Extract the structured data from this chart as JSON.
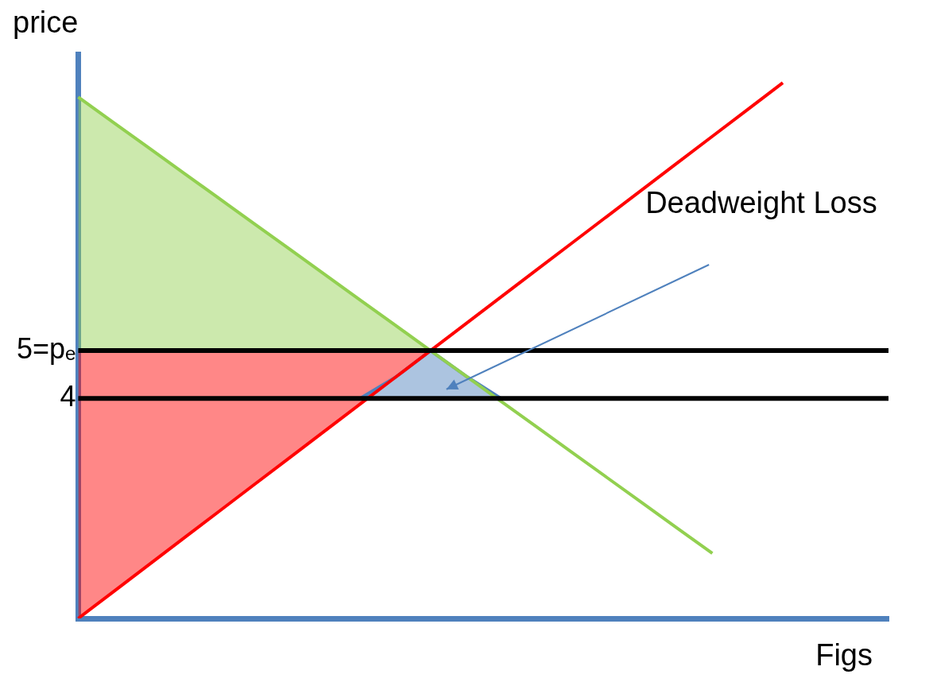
{
  "chart_data": {
    "type": "line",
    "xlabel": "Figs",
    "ylabel": "price",
    "categories": [
      null,
      null,
      null,
      null,
      null,
      null,
      null,
      null,
      null,
      null,
      null,
      null,
      null,
      null,
      null,
      null,
      null,
      null,
      null,
      null,
      null,
      null,
      null,
      null
    ],
    "ylim": [
      -0.6,
      11.2
    ],
    "yticks": [
      4,
      {
        "value": 5,
        "label": "5=pₑ"
      }
    ],
    "tick_labels": "y",
    "grid": false,
    "legend": false,
    "marker": "none",
    "series": [
      {
        "color": "#92d050",
        "values": [
          10.3,
          9.77,
          9.24,
          8.71,
          8.18,
          7.65,
          7.12,
          6.59,
          6.06,
          5.53,
          5,
          4.47,
          3.94,
          3.41,
          2.88,
          2.35,
          1.82,
          1.29,
          0.76,
          null,
          null,
          null,
          null,
          null
        ],
        "lower": [
          5,
          5,
          5,
          5,
          5,
          5,
          5,
          5,
          5,
          5,
          5,
          null,
          null,
          null,
          null,
          null,
          null,
          null,
          null,
          null,
          null,
          null,
          null,
          null
        ],
        "upper": [
          10.3,
          9.77,
          9.24,
          8.71,
          8.18,
          7.65,
          7.12,
          6.59,
          6.06,
          5.53,
          5,
          null,
          null,
          null,
          null,
          null,
          null,
          null,
          null,
          null,
          null,
          null,
          null,
          null
        ]
      },
      {
        "color": "#ff0000",
        "values": [
          -0.6,
          -0.04,
          0.52,
          1.08,
          1.64,
          2.2,
          2.76,
          3.32,
          3.88,
          4.44,
          5,
          5.56,
          6.12,
          6.68,
          7.24,
          7.8,
          8.36,
          8.92,
          9.48,
          10.04,
          10.6,
          null,
          null,
          null
        ],
        "lower": [
          -0.6,
          -0.04,
          0.52,
          1.08,
          1.64,
          2.2,
          2.76,
          3.32,
          3.88,
          4.44,
          5,
          null,
          null,
          null,
          null,
          null,
          null,
          null,
          null,
          null,
          null,
          null,
          null,
          null
        ],
        "upper": [
          5,
          5,
          5,
          5,
          5,
          5,
          5,
          5,
          5,
          5,
          5,
          null,
          null,
          null,
          null,
          null,
          null,
          null,
          null,
          null,
          null,
          null,
          null,
          null
        ]
      },
      {
        "color": "#4f81bd",
        "values": [
          null,
          null,
          null,
          null,
          null,
          null,
          null,
          null,
          4,
          4.44,
          5,
          4.47,
          4,
          null,
          null,
          null,
          null,
          null,
          null,
          null,
          null,
          null,
          null,
          null
        ],
        "lower": [
          null,
          null,
          null,
          null,
          null,
          null,
          null,
          null,
          4,
          4,
          4,
          4,
          4,
          null,
          null,
          null,
          null,
          null,
          null,
          null,
          null,
          null,
          null,
          null
        ],
        "upper": [
          null,
          null,
          null,
          null,
          null,
          null,
          null,
          null,
          4,
          4.44,
          5,
          4.47,
          4,
          null,
          null,
          null,
          null,
          null,
          null,
          null,
          null,
          null,
          null,
          null
        ]
      }
    ],
    "ref_lines": [
      {
        "axis": "y",
        "value": 5,
        "color": "#000000"
      },
      {
        "axis": "y",
        "value": 4,
        "color": "#000000"
      }
    ],
    "annotations": [
      "Deadweight Loss"
    ]
  }
}
